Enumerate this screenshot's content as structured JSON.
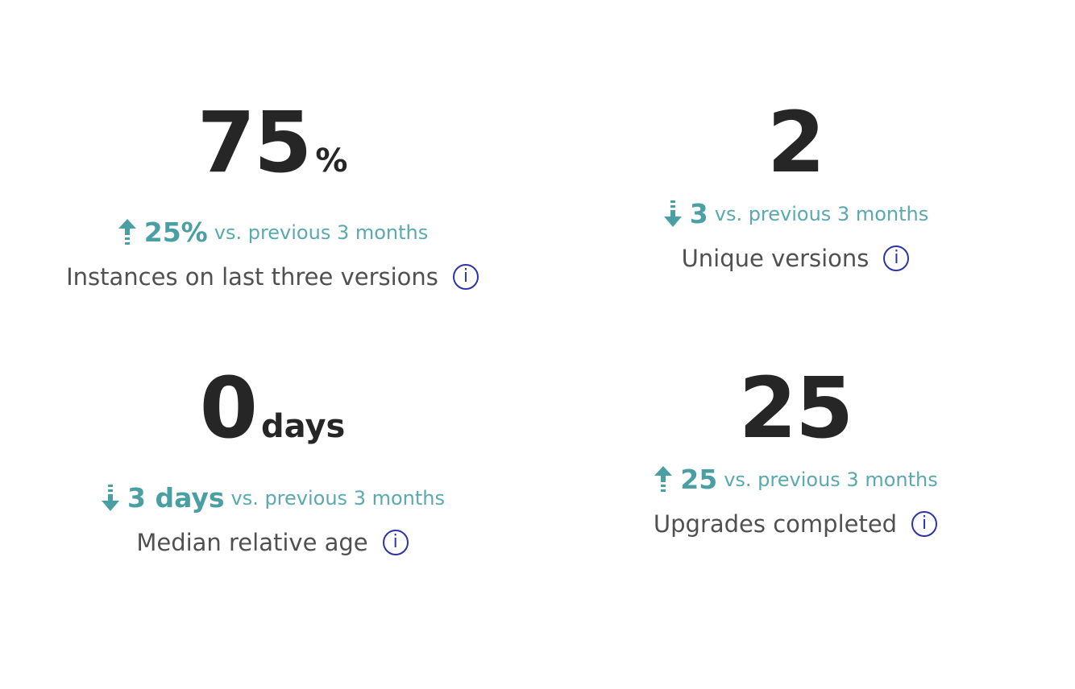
{
  "accent_color": "#4a9fa5",
  "info_color": "#2d33a8",
  "metrics": [
    {
      "value": "75",
      "unit": "%",
      "trend_direction": "up",
      "trend_icon": "arrow-up-icon",
      "trend_value": "25%",
      "trend_text": "vs. previous 3 months",
      "label": "Instances on last three versions",
      "info_icon": "i"
    },
    {
      "value": "2",
      "unit": "",
      "trend_direction": "down",
      "trend_icon": "arrow-down-icon",
      "trend_value": "3",
      "trend_text": "vs. previous 3 months",
      "label": "Unique versions",
      "info_icon": "i"
    },
    {
      "value": "0",
      "unit": "days",
      "trend_direction": "down",
      "trend_icon": "arrow-down-icon",
      "trend_value": "3 days",
      "trend_text": "vs. previous 3 months",
      "label": "Median relative age",
      "info_icon": "i"
    },
    {
      "value": "25",
      "unit": "",
      "trend_direction": "up",
      "trend_icon": "arrow-up-icon",
      "trend_value": "25",
      "trend_text": "vs. previous 3 months",
      "label": "Upgrades completed",
      "info_icon": "i"
    }
  ]
}
